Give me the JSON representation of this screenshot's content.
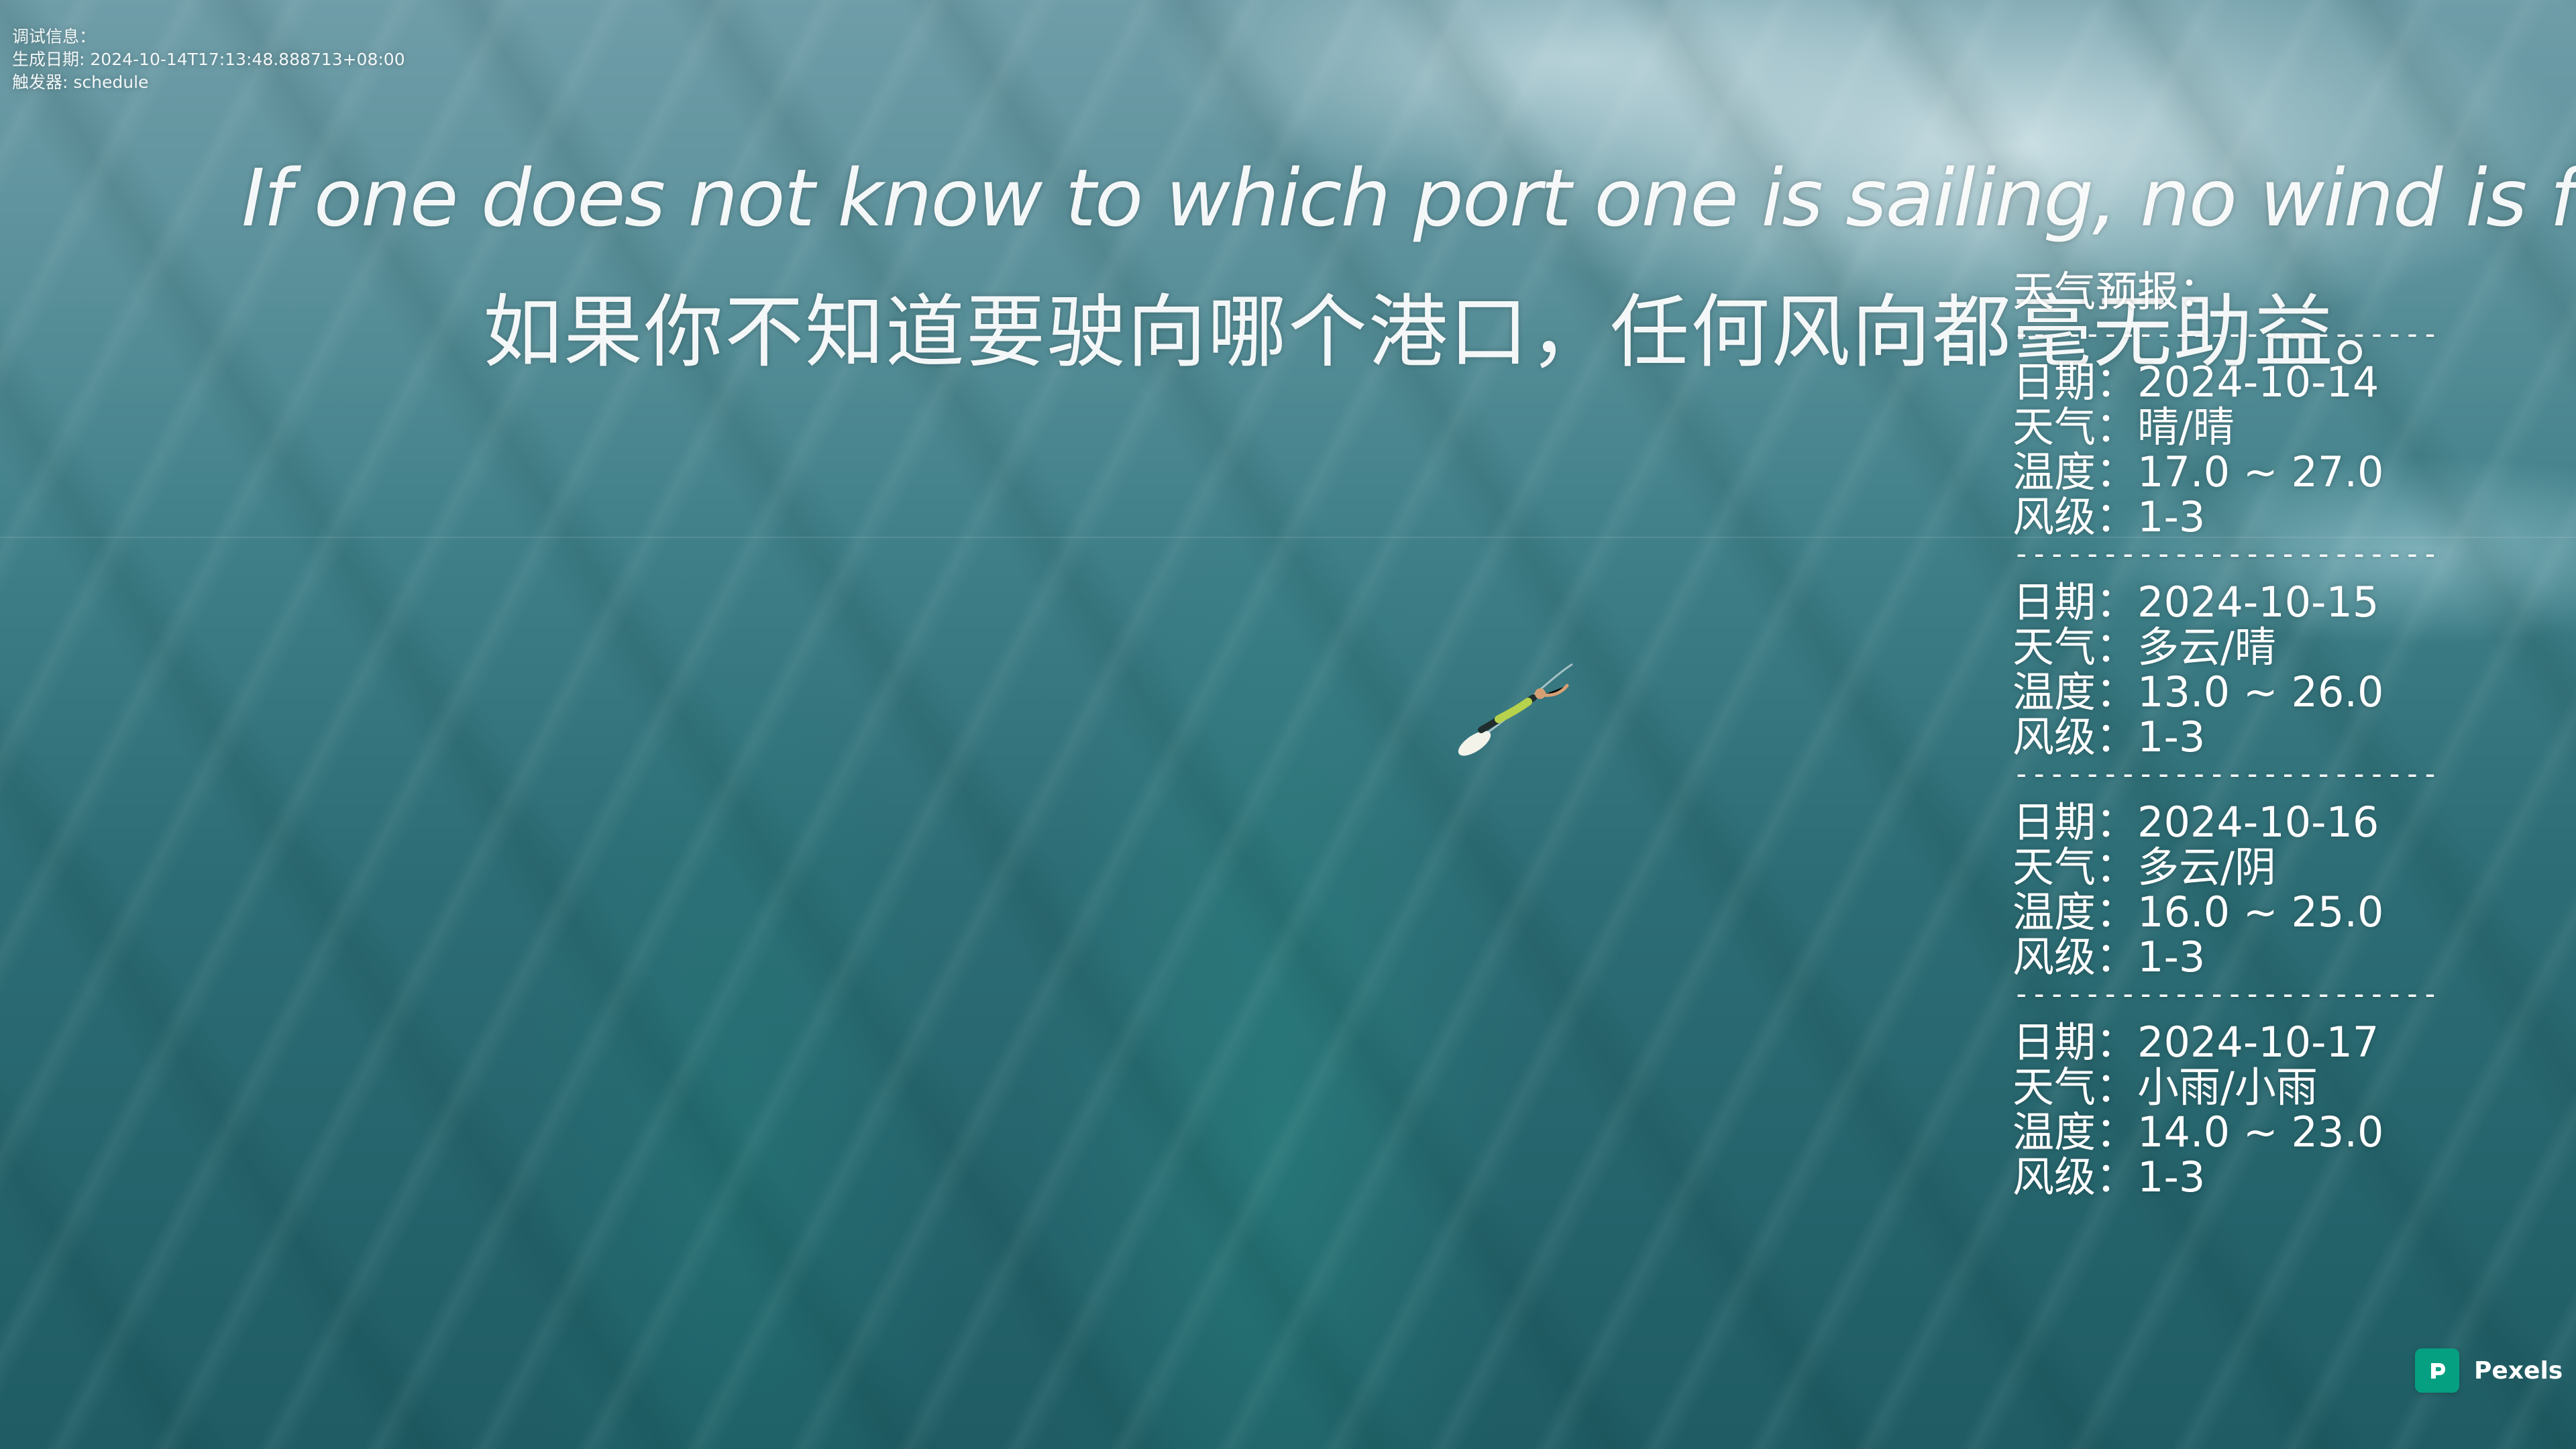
{
  "background": {
    "photo": "ocean-surfer"
  },
  "debug": {
    "label": "调试信息：",
    "generated_label": "生成日期",
    "generated_value": "2024-10-14T17:13:48.888713+08:00",
    "trigger_label": "触发器",
    "trigger_value": "schedule"
  },
  "quote": {
    "english": "If one does not know to which port one is sailing, no wind is favorable.",
    "chinese": "如果你不知道要驶向哪个港口，任何风向都毫无助益。"
  },
  "weather": {
    "title": "天气预报：",
    "divider": "------------------------------",
    "days": [
      {
        "date_label": "日期",
        "date": "2024-10-14",
        "weather_label": "天气",
        "weather": "晴/晴",
        "temp_label": "温度",
        "temp": "17.0 ~ 27.0",
        "wind_label": "风级",
        "wind": "1-3"
      },
      {
        "date_label": "日期",
        "date": "2024-10-15",
        "weather_label": "天气",
        "weather": "多云/晴",
        "temp_label": "温度",
        "temp": "13.0 ~ 26.0",
        "wind_label": "风级",
        "wind": "1-3"
      },
      {
        "date_label": "日期",
        "date": "2024-10-16",
        "weather_label": "天气",
        "weather": "多云/阴",
        "temp_label": "温度",
        "temp": "16.0 ~ 25.0",
        "wind_label": "风级",
        "wind": "1-3"
      },
      {
        "date_label": "日期",
        "date": "2024-10-17",
        "weather_label": "天气",
        "weather": "小雨/小雨",
        "temp_label": "温度",
        "temp": "14.0 ~ 23.0",
        "wind_label": "风级",
        "wind": "1-3"
      }
    ]
  },
  "credit": {
    "icon": "pexels-logo-icon",
    "label": "Pexels",
    "accent": "#05A081"
  }
}
